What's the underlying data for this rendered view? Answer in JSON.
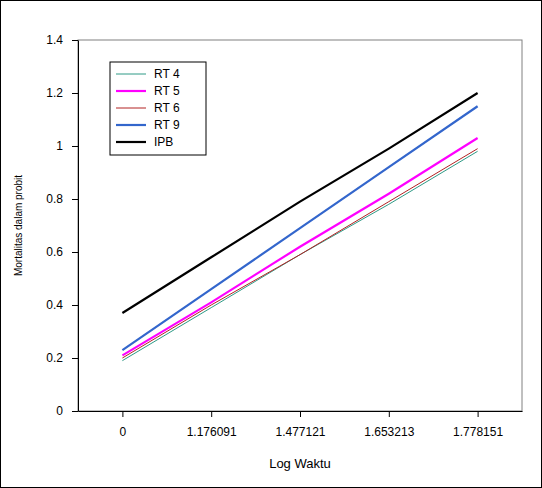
{
  "chart_data": {
    "type": "line",
    "x_label": "Log Waktu",
    "y_label": "Mortalitas dalam probit",
    "categories": [
      "0",
      "1.176091",
      "1.477121",
      "1.653213",
      "1.778151"
    ],
    "series": [
      {
        "name": "RT 4",
        "color": "#2e9a86",
        "values": [
          0.19,
          0.39,
          0.59,
          0.78,
          0.98
        ]
      },
      {
        "name": "RT 5",
        "color": "#ff00ff",
        "values": [
          0.21,
          0.41,
          0.62,
          0.82,
          1.03
        ]
      },
      {
        "name": "RT 6",
        "color": "#b22222",
        "values": [
          0.2,
          0.4,
          0.59,
          0.79,
          0.99
        ]
      },
      {
        "name": "RT 9",
        "color": "#3366cc",
        "values": [
          0.23,
          0.46,
          0.69,
          0.92,
          1.15
        ]
      },
      {
        "name": "IPB",
        "color": "#000000",
        "values": [
          0.37,
          0.58,
          0.79,
          0.99,
          1.2
        ]
      }
    ],
    "ylim": [
      0,
      1.4
    ],
    "yticks": [
      0,
      0.2,
      0.4,
      0.6,
      0.8,
      1,
      1.2,
      1.4
    ],
    "legend": "top-left",
    "grid": false
  }
}
